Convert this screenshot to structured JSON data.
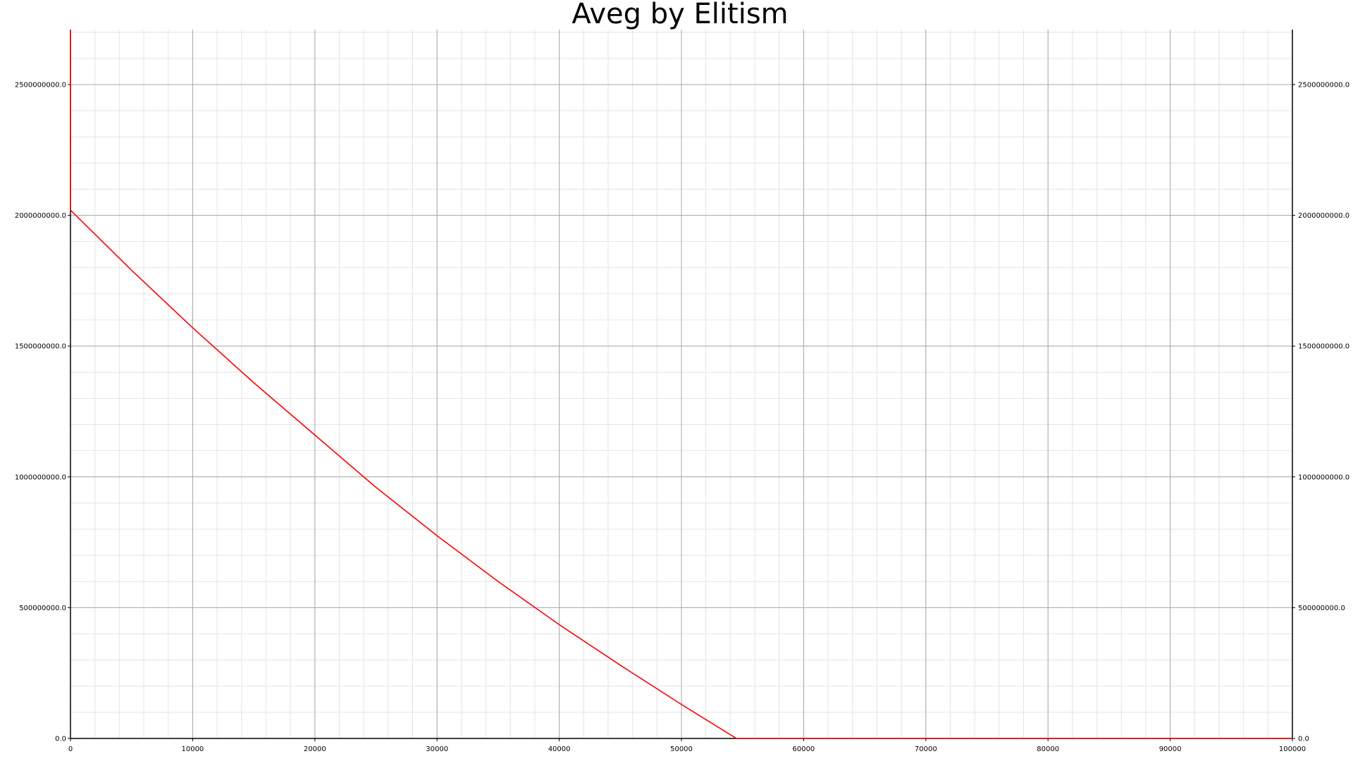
{
  "chart_data": {
    "type": "line",
    "title": "Aveg by Elitism",
    "xlabel": "",
    "ylabel": "",
    "xlim": [
      0,
      100000
    ],
    "ylim": [
      0,
      2710000000
    ],
    "x_ticks": [
      0,
      10000,
      20000,
      30000,
      40000,
      50000,
      60000,
      70000,
      80000,
      90000,
      100000
    ],
    "x_tick_labels": [
      "0",
      "10000",
      "20000",
      "30000",
      "40000",
      "50000",
      "60000",
      "70000",
      "80000",
      "90000",
      "100000"
    ],
    "y_ticks": [
      0,
      500000000,
      1000000000,
      1500000000,
      2000000000,
      2500000000
    ],
    "y_tick_labels": [
      "0.0",
      "500000000.0",
      "1000000000.0",
      "1500000000.0",
      "2000000000.0",
      "2500000000.0"
    ],
    "grid": true,
    "minor_grid": true,
    "right_axis_labels": true,
    "series": [
      {
        "color": "#ff0000",
        "x": [
          0,
          0,
          0,
          5000,
          10000,
          15000,
          20000,
          25000,
          30000,
          35000,
          40000,
          45000,
          50000,
          54500,
          60000,
          70000,
          80000,
          90000,
          100000
        ],
        "y": [
          2710000000,
          2100000000,
          2020000000,
          1790000000,
          1570000000,
          1360000000,
          1160000000,
          960000000,
          775000000,
          600000000,
          435000000,
          280000000,
          130000000,
          0,
          0,
          0,
          0,
          0,
          0
        ]
      }
    ]
  }
}
